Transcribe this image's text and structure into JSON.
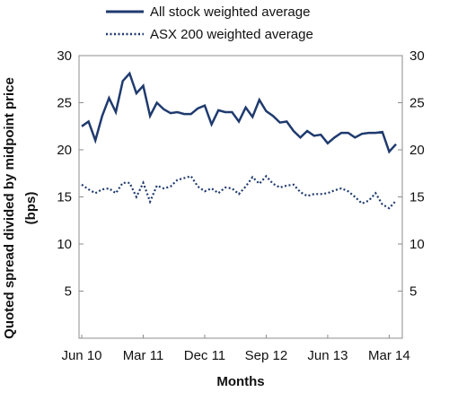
{
  "chart_data": {
    "type": "line",
    "xlabel": "Months",
    "ylabel_line1": "Quoted spread divided by midpoint price",
    "ylabel_line2": "(bps)",
    "ylim": [
      0,
      30
    ],
    "yticks": [
      5,
      10,
      15,
      20,
      25,
      30
    ],
    "grid": false,
    "legend_position": "top",
    "x": [
      "Jun 10",
      "Jul 10",
      "Aug 10",
      "Sep 10",
      "Oct 10",
      "Nov 10",
      "Dec 10",
      "Jan 11",
      "Feb 11",
      "Mar 11",
      "Apr 11",
      "May 11",
      "Jun 11",
      "Jul 11",
      "Aug 11",
      "Sep 11",
      "Oct 11",
      "Nov 11",
      "Dec 11",
      "Jan 12",
      "Feb 12",
      "Mar 12",
      "Apr 12",
      "May 12",
      "Jun 12",
      "Jul 12",
      "Aug 12",
      "Sep 12",
      "Oct 12",
      "Nov 12",
      "Dec 12",
      "Jan 13",
      "Feb 13",
      "Mar 13",
      "Apr 13",
      "May 13",
      "Jun 13",
      "Jul 13",
      "Aug 13",
      "Sep 13",
      "Oct 13",
      "Nov 13",
      "Dec 13",
      "Jan 14",
      "Feb 14",
      "Mar 14",
      "Apr 14"
    ],
    "x_tick_labels": [
      "Jun 10",
      "Mar 11",
      "Dec 11",
      "Sep 12",
      "Jun 13",
      "Mar 14"
    ],
    "series": [
      {
        "name": "All stock weighted average",
        "style": "solid",
        "color": "#1f3a6e",
        "values": [
          22.5,
          23.0,
          21.0,
          23.6,
          25.5,
          24.0,
          27.3,
          28.1,
          26.0,
          26.8,
          23.6,
          25.0,
          24.3,
          23.9,
          24.0,
          23.8,
          23.8,
          24.4,
          24.7,
          22.7,
          24.2,
          24.0,
          24.0,
          23.0,
          24.5,
          23.5,
          25.3,
          24.1,
          23.6,
          22.9,
          23.0,
          22.0,
          21.3,
          22.0,
          21.5,
          21.6,
          20.7,
          21.3,
          21.8,
          21.8,
          21.3,
          21.7,
          21.8,
          21.8,
          21.9,
          19.8,
          20.6
        ]
      },
      {
        "name": "ASX 200 weighted average",
        "style": "dotted",
        "color": "#1f3a6e",
        "values": [
          16.3,
          15.8,
          15.4,
          15.8,
          15.9,
          15.4,
          16.5,
          16.5,
          15.0,
          16.5,
          14.5,
          16.2,
          15.9,
          16.1,
          16.8,
          17.0,
          17.2,
          16.1,
          15.6,
          15.9,
          15.4,
          16.0,
          15.9,
          15.3,
          16.1,
          17.1,
          16.4,
          17.2,
          16.4,
          16.0,
          16.2,
          16.3,
          15.5,
          15.1,
          15.3,
          15.3,
          15.4,
          15.7,
          15.9,
          15.6,
          15.0,
          14.3,
          14.6,
          15.4,
          14.2,
          13.8,
          14.6
        ]
      }
    ]
  }
}
